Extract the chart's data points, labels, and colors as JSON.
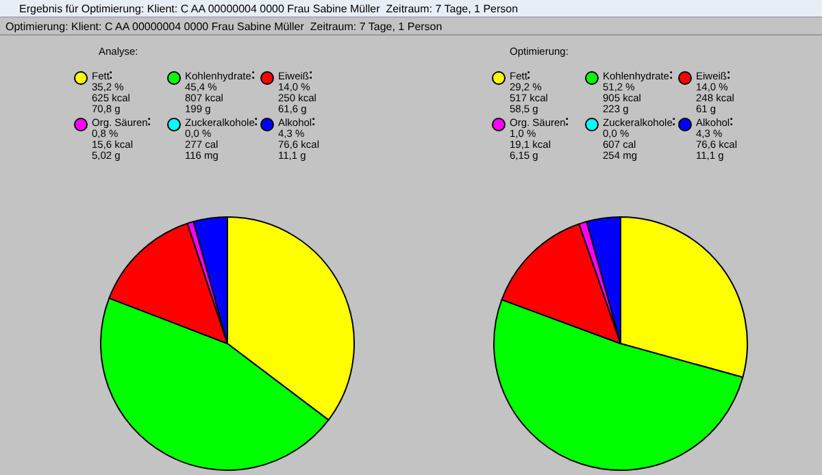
{
  "chart_data": [
    {
      "type": "pie",
      "title": "Analyse:",
      "legend": "top",
      "annotations": [
        "Ergebnis für Optimierung: Klient: C AA 00000004 0000 Frau Sabine Müller  Zeitraum: 7 Tage, 1 Person",
        "Optimierung: Klient: C AA 00000004 0000 Frau Sabine Müller  Zeitraum: 7 Tage, 1 Person"
      ],
      "categories": [
        "Fett",
        "Kohlenhydrate",
        "Eiweiß",
        "Org. Säuren",
        "Zuckeralkohole",
        "Alkohol"
      ],
      "values": [
        35.2,
        45.4,
        14.0,
        0.8,
        0.0,
        4.3
      ],
      "value_labels": [
        "35,2 %\n625 kcal\n70,8 g",
        "45,4 %\n807 kcal\n199 g",
        "14,0 %\n250 kcal\n61,6 g",
        "0,8 %\n15,6 kcal\n5,02 g",
        "0,0 %\n277 cal\n116 mg",
        "4,3 %\n76,6 kcal\n11,1 g"
      ],
      "colors": [
        "#ffff00",
        "#00ff00",
        "#ff0000",
        "#ff00ff",
        "#00ffff",
        "#0000ff"
      ]
    },
    {
      "type": "pie",
      "title": "Optimierung:",
      "legend": "top",
      "categories": [
        "Fett",
        "Kohlenhydrate",
        "Eiweiß",
        "Org. Säuren",
        "Zuckeralkohole",
        "Alkohol"
      ],
      "values": [
        29.2,
        51.2,
        14.0,
        1.0,
        0.0,
        4.3
      ],
      "value_labels": [
        "29,2 %\n517 kcal\n58,5 g",
        "51,2 %\n905 kcal\n223 g",
        "14,0 %\n248 kcal\n61 g",
        "1,0 %\n19,1 kcal\n6,15 g",
        "0,0 %\n607 cal\n254 mg",
        "4,3 %\n76,6 kcal\n11,1 g"
      ],
      "colors": [
        "#ffff00",
        "#00ff00",
        "#ff0000",
        "#ff00ff",
        "#00ffff",
        "#0000ff"
      ]
    }
  ]
}
